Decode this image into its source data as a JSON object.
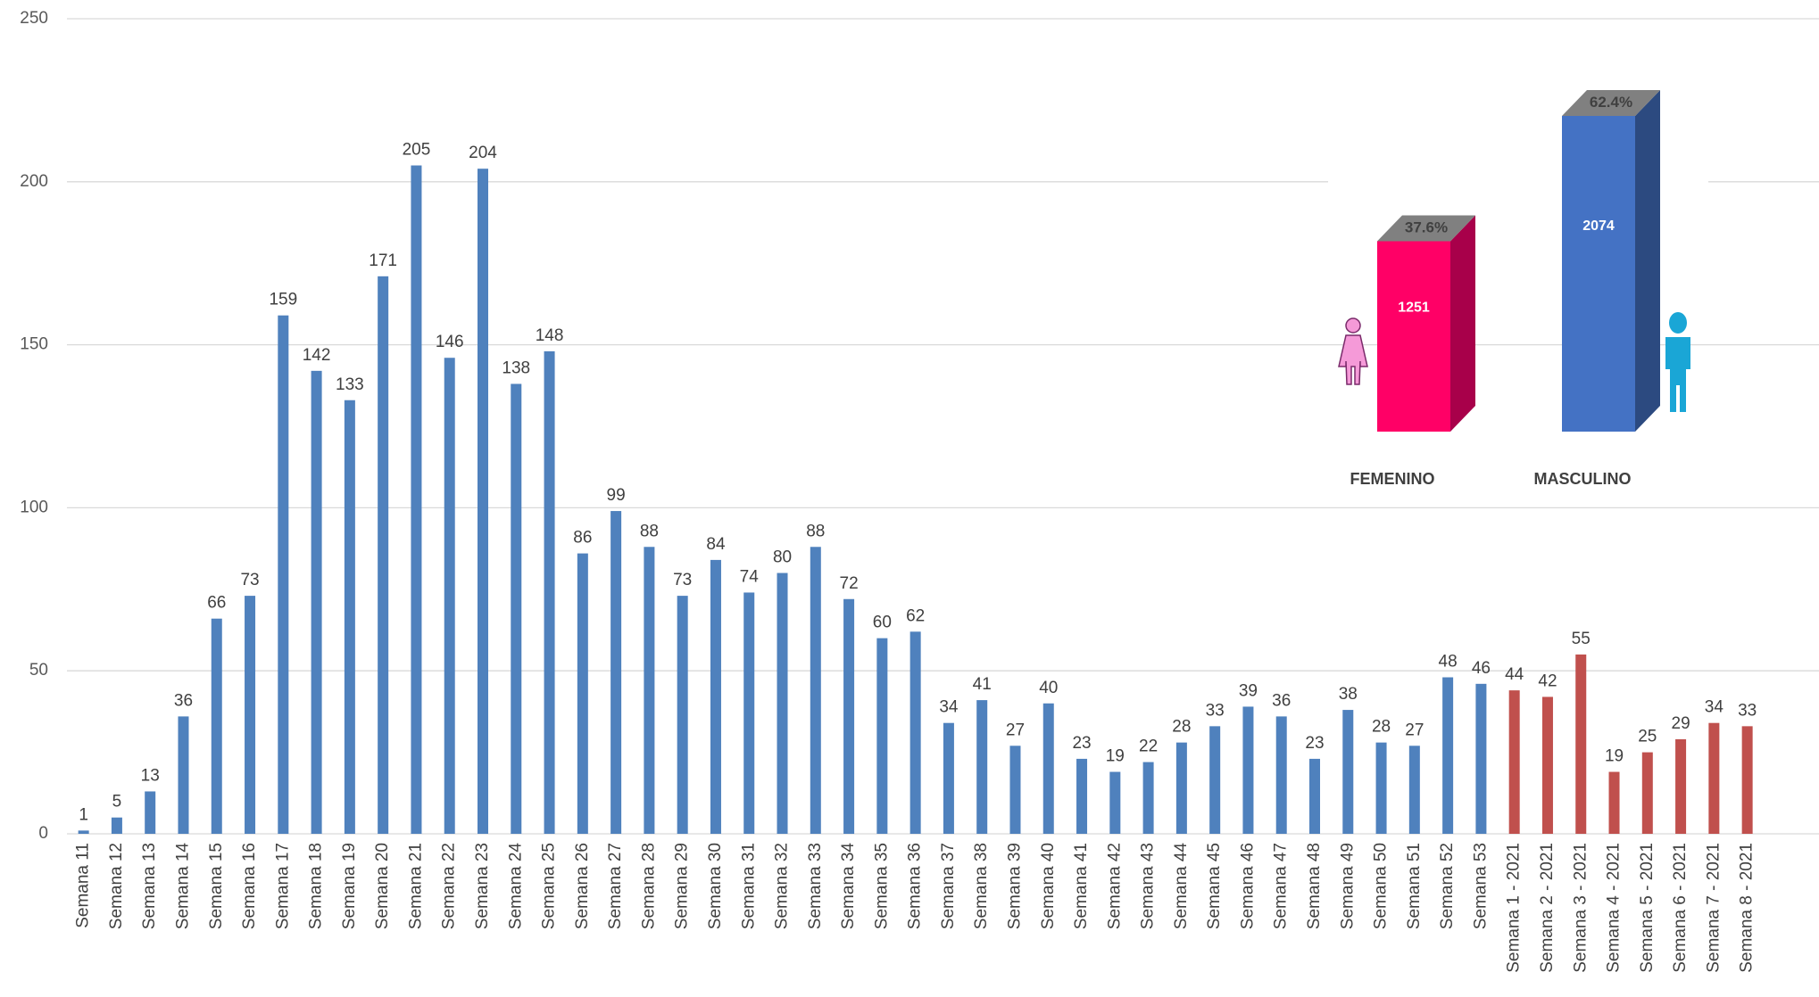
{
  "chart_data": [
    {
      "type": "bar",
      "categories": [
        "Semana 11",
        "Semana 12",
        "Semana 13",
        "Semana 14",
        "Semana 15",
        "Semana 16",
        "Semana 17",
        "Semana 18",
        "Semana 19",
        "Semana 20",
        "Semana 21",
        "Semana 22",
        "Semana 23",
        "Semana 24",
        "Semana 25",
        "Semana 26",
        "Semana 27",
        "Semana 28",
        "Semana 29",
        "Semana 30",
        "Semana 31",
        "Semana 32",
        "Semana 33",
        "Semana 34",
        "Semana 35",
        "Semana 36",
        "Semana 37",
        "Semana 38",
        "Semana 39",
        "Semana 40",
        "Semana 41",
        "Semana 42",
        "Semana 43",
        "Semana 44",
        "Semana 45",
        "Semana 46",
        "Semana 47",
        "Semana 48",
        "Semana 49",
        "Semana 50",
        "Semana 51",
        "Semana 52",
        "Semana 53",
        "Semana 1 - 2021",
        "Semana 2 - 2021",
        "Semana 3 - 2021",
        "Semana 4 - 2021",
        "Semana 5 - 2021",
        "Semana 6 - 2021",
        "Semana 7 - 2021",
        "Semana 8 - 2021"
      ],
      "values": [
        1,
        5,
        13,
        36,
        66,
        73,
        159,
        142,
        133,
        171,
        205,
        146,
        204,
        138,
        148,
        86,
        99,
        88,
        73,
        84,
        74,
        80,
        88,
        72,
        60,
        62,
        34,
        41,
        27,
        40,
        23,
        19,
        22,
        28,
        33,
        39,
        36,
        23,
        38,
        28,
        27,
        48,
        46,
        44,
        42,
        55,
        19,
        25,
        29,
        34,
        33
      ],
      "colors": [
        "#4f81bd",
        "#4f81bd",
        "#4f81bd",
        "#4f81bd",
        "#4f81bd",
        "#4f81bd",
        "#4f81bd",
        "#4f81bd",
        "#4f81bd",
        "#4f81bd",
        "#4f81bd",
        "#4f81bd",
        "#4f81bd",
        "#4f81bd",
        "#4f81bd",
        "#4f81bd",
        "#4f81bd",
        "#4f81bd",
        "#4f81bd",
        "#4f81bd",
        "#4f81bd",
        "#4f81bd",
        "#4f81bd",
        "#4f81bd",
        "#4f81bd",
        "#4f81bd",
        "#4f81bd",
        "#4f81bd",
        "#4f81bd",
        "#4f81bd",
        "#4f81bd",
        "#4f81bd",
        "#4f81bd",
        "#4f81bd",
        "#4f81bd",
        "#4f81bd",
        "#4f81bd",
        "#4f81bd",
        "#4f81bd",
        "#4f81bd",
        "#4f81bd",
        "#4f81bd",
        "#4f81bd",
        "#c0504d",
        "#c0504d",
        "#c0504d",
        "#c0504d",
        "#c0504d",
        "#c0504d",
        "#c0504d",
        "#c0504d"
      ],
      "ylim": [
        0,
        250
      ],
      "yticks": [
        0,
        50,
        100,
        150,
        200,
        250
      ],
      "grid": true
    },
    {
      "type": "bar3d",
      "categories": [
        "FEMENINO",
        "MASCULINO"
      ],
      "values": [
        1251,
        2074
      ],
      "shares": [
        37.6,
        62.4
      ],
      "share_labels": [
        "37.6%",
        "62.4%"
      ],
      "colors": [
        "#ff0066",
        "#4472c4"
      ],
      "side_colors": [
        "#a8004a",
        "#2c4a80"
      ]
    }
  ]
}
